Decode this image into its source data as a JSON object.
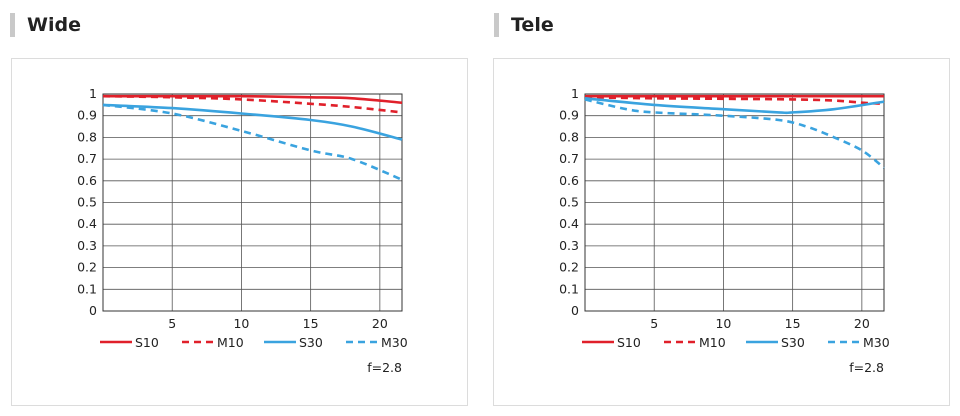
{
  "panels": [
    {
      "title": "Wide"
    },
    {
      "title": "Tele"
    }
  ],
  "colors": {
    "red": "#e0202a",
    "blue": "#3aa3df",
    "grid": "#555555",
    "frame": "#dcdcdc",
    "heading_bar": "#c9c9c9"
  },
  "chart_data": [
    {
      "type": "line",
      "title": "Wide",
      "xlim": [
        0,
        21.6
      ],
      "ylim": [
        0,
        1
      ],
      "x_ticks": [
        5,
        10,
        15,
        20
      ],
      "y_ticks": [
        0,
        0.1,
        0.2,
        0.3,
        0.4,
        0.5,
        0.6,
        0.7,
        0.8,
        0.9,
        1
      ],
      "grid": true,
      "legend_position": "bottom",
      "note": "f=2.8",
      "series": [
        {
          "name": "S10",
          "color": "#e0202a",
          "dash": false,
          "x": [
            0,
            5,
            10,
            15,
            18,
            21.6
          ],
          "y": [
            0.99,
            0.99,
            0.99,
            0.985,
            0.98,
            0.96
          ]
        },
        {
          "name": "M10",
          "color": "#e0202a",
          "dash": true,
          "x": [
            0,
            5,
            10,
            15,
            18,
            21.6
          ],
          "y": [
            0.99,
            0.985,
            0.975,
            0.955,
            0.94,
            0.915
          ]
        },
        {
          "name": "S30",
          "color": "#3aa3df",
          "dash": false,
          "x": [
            0,
            5,
            10,
            15,
            18,
            21.6
          ],
          "y": [
            0.95,
            0.935,
            0.91,
            0.88,
            0.85,
            0.79
          ]
        },
        {
          "name": "M30",
          "color": "#3aa3df",
          "dash": true,
          "x": [
            0,
            5,
            10,
            15,
            18,
            21.6
          ],
          "y": [
            0.95,
            0.91,
            0.83,
            0.74,
            0.7,
            0.605
          ]
        }
      ]
    },
    {
      "type": "line",
      "title": "Tele",
      "xlim": [
        0,
        21.6
      ],
      "ylim": [
        0,
        1
      ],
      "x_ticks": [
        5,
        10,
        15,
        20
      ],
      "y_ticks": [
        0,
        0.1,
        0.2,
        0.3,
        0.4,
        0.5,
        0.6,
        0.7,
        0.8,
        0.9,
        1
      ],
      "grid": true,
      "legend_position": "bottom",
      "note": "f=2.8",
      "series": [
        {
          "name": "S10",
          "color": "#e0202a",
          "dash": false,
          "x": [
            0,
            5,
            10,
            15,
            20,
            21.6
          ],
          "y": [
            0.99,
            0.99,
            0.99,
            0.99,
            0.99,
            0.99
          ]
        },
        {
          "name": "M10",
          "color": "#e0202a",
          "dash": true,
          "x": [
            0,
            5,
            10,
            15,
            18,
            20,
            21.6
          ],
          "y": [
            0.985,
            0.98,
            0.978,
            0.975,
            0.97,
            0.96,
            0.955
          ]
        },
        {
          "name": "S30",
          "color": "#3aa3df",
          "dash": false,
          "x": [
            0,
            5,
            10,
            14,
            15,
            18,
            21.6
          ],
          "y": [
            0.98,
            0.95,
            0.93,
            0.915,
            0.915,
            0.93,
            0.965
          ]
        },
        {
          "name": "M30",
          "color": "#3aa3df",
          "dash": true,
          "x": [
            0,
            3,
            5,
            10,
            14,
            16,
            18,
            20,
            21.6
          ],
          "y": [
            0.975,
            0.93,
            0.915,
            0.9,
            0.88,
            0.85,
            0.8,
            0.74,
            0.66
          ]
        }
      ]
    }
  ]
}
